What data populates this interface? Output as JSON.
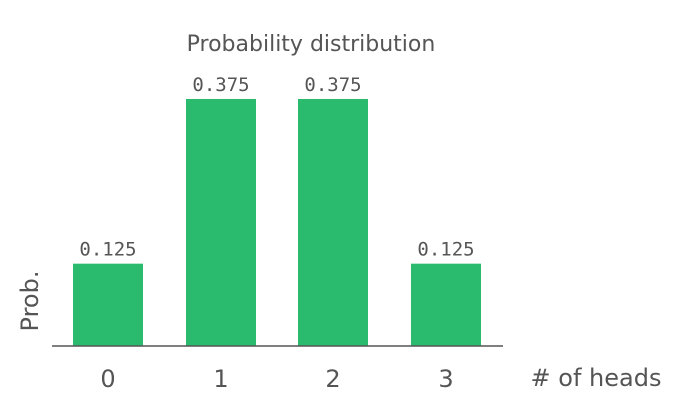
{
  "chart_data": {
    "type": "bar",
    "title": "Probability distribution",
    "xlabel": "# of heads",
    "ylabel": "Prob.",
    "categories": [
      "0",
      "1",
      "2",
      "3"
    ],
    "values": [
      0.125,
      0.375,
      0.375,
      0.125
    ],
    "data_labels": [
      "0.125",
      "0.375",
      "0.375",
      "0.125"
    ],
    "ylim": [
      0,
      0.375
    ],
    "grid": false,
    "colors": {
      "bar": "#2bbb6e",
      "axis": "#555555",
      "text": "#555555"
    }
  }
}
